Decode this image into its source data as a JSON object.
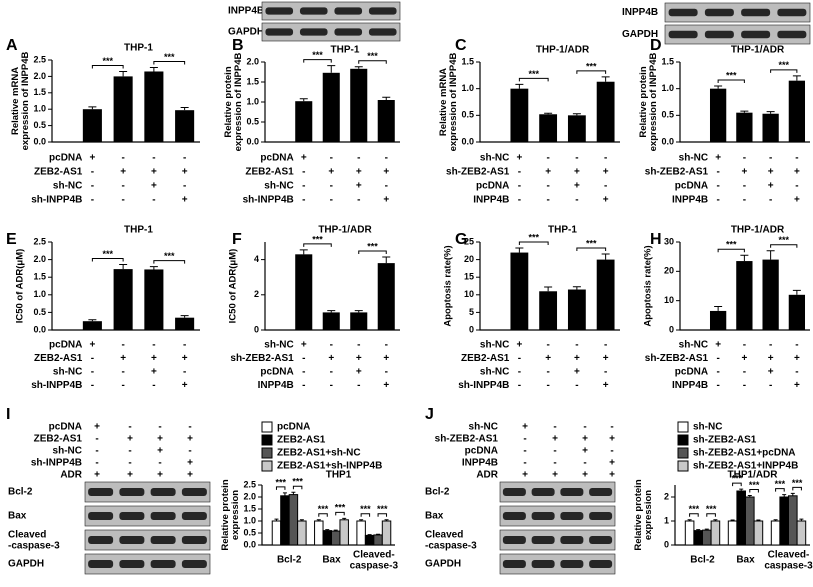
{
  "chart_data": [
    {
      "panel": "A",
      "type": "bar",
      "title": "THP-1",
      "ylabel": "Relative mRNA\nexpression of INPP4B",
      "color": "#000000",
      "values": [
        1.0,
        2.0,
        2.15,
        0.97
      ],
      "errors": [
        0.07,
        0.15,
        0.12,
        0.08
      ],
      "ylim": [
        0,
        2.5
      ],
      "yticks": [
        {
          "value": 0,
          "label": "0.0"
        },
        0.5,
        {
          "value": 1,
          "label": "1.0"
        },
        1.5,
        {
          "value": 2,
          "label": "2.0"
        },
        2.5
      ],
      "annotations": [
        "***",
        "***"
      ],
      "conditions": [
        {
          "label": "pcDNA",
          "marks": [
            "+",
            "-",
            "-",
            "-"
          ]
        },
        {
          "label": "ZEB2-AS1",
          "marks": [
            "-",
            "+",
            "+",
            "+"
          ]
        },
        {
          "label": "sh-NC",
          "marks": [
            "-",
            "-",
            "+",
            "-"
          ]
        },
        {
          "label": "sh-INPP4B",
          "marks": [
            "-",
            "-",
            "-",
            "+"
          ]
        }
      ]
    },
    {
      "panel": "B",
      "type": "bar",
      "title": "THP-1",
      "ylabel": "Relative protein\nexpression of INPP4B",
      "color": "#000000",
      "values": [
        1.02,
        1.73,
        1.83,
        1.05
      ],
      "errors": [
        0.06,
        0.18,
        0.05,
        0.07
      ],
      "ylim": [
        0,
        2.0
      ],
      "yticks": [
        {
          "value": 0,
          "label": "0.0"
        },
        0.5,
        {
          "value": 1,
          "label": "1.0"
        },
        1.5,
        {
          "value": 2,
          "label": "2.0"
        }
      ],
      "annotations": [
        "***",
        "***"
      ],
      "blot_labels": [
        "INPP4B",
        "GAPDH"
      ],
      "conditions": [
        {
          "label": "pcDNA",
          "marks": [
            "+",
            "-",
            "-",
            "-"
          ]
        },
        {
          "label": "ZEB2-AS1",
          "marks": [
            "-",
            "+",
            "+",
            "+"
          ]
        },
        {
          "label": "sh-NC",
          "marks": [
            "-",
            "-",
            "+",
            "-"
          ]
        },
        {
          "label": "sh-INPP4B",
          "marks": [
            "-",
            "-",
            "-",
            "+"
          ]
        }
      ]
    },
    {
      "panel": "C",
      "type": "bar",
      "title": "THP-1/ADR",
      "ylabel": "Relative mRNA\nexpression of INPP4B",
      "color": "#000000",
      "values": [
        1.0,
        0.52,
        0.5,
        1.13
      ],
      "errors": [
        0.08,
        0.02,
        0.03,
        0.09
      ],
      "ylim": [
        0,
        1.5
      ],
      "yticks": [
        {
          "value": 0,
          "label": "0.0"
        },
        0.5,
        {
          "value": 1,
          "label": "1.0"
        },
        1.5
      ],
      "annotations": [
        "***",
        "***"
      ],
      "conditions": [
        {
          "label": "sh-NC",
          "marks": [
            "+",
            "-",
            "-",
            "-"
          ]
        },
        {
          "label": "sh-ZEB2-AS1",
          "marks": [
            "-",
            "+",
            "+",
            "+"
          ]
        },
        {
          "label": "pcDNA",
          "marks": [
            "-",
            "-",
            "+",
            "-"
          ]
        },
        {
          "label": "INPP4B",
          "marks": [
            "-",
            "-",
            "-",
            "+"
          ]
        }
      ]
    },
    {
      "panel": "D",
      "type": "bar",
      "title": "THP-1/ADR",
      "ylabel": "Relative protein\nexpression of INPP4B",
      "color": "#000000",
      "values": [
        1.0,
        0.55,
        0.53,
        1.15
      ],
      "errors": [
        0.05,
        0.03,
        0.04,
        0.09
      ],
      "ylim": [
        0,
        1.5
      ],
      "yticks": [
        {
          "value": 0,
          "label": "0.0"
        },
        0.5,
        {
          "value": 1,
          "label": "1.0"
        },
        1.5
      ],
      "annotations": [
        "***",
        "***"
      ],
      "blot_labels": [
        "INPP4B",
        "GAPDH"
      ],
      "conditions": [
        {
          "label": "sh-NC",
          "marks": [
            "+",
            "-",
            "-",
            "-"
          ]
        },
        {
          "label": "sh-ZEB2-AS1",
          "marks": [
            "-",
            "+",
            "+",
            "+"
          ]
        },
        {
          "label": "pcDNA",
          "marks": [
            "-",
            "-",
            "+",
            "-"
          ]
        },
        {
          "label": "INPP4B",
          "marks": [
            "-",
            "-",
            "-",
            "+"
          ]
        }
      ]
    },
    {
      "panel": "E",
      "type": "bar",
      "title": "THP-1",
      "ylabel": "IC50 of ADR(μM)",
      "color": "#000000",
      "values": [
        0.25,
        1.73,
        1.72,
        0.35
      ],
      "errors": [
        0.04,
        0.13,
        0.08,
        0.06
      ],
      "ylim": [
        0,
        2.5
      ],
      "yticks": [
        {
          "value": 0,
          "label": "0.0"
        },
        0.5,
        {
          "value": 1,
          "label": "1.0"
        },
        1.5,
        {
          "value": 2,
          "label": "2.0"
        },
        2.5
      ],
      "annotations": [
        "***",
        "***"
      ],
      "conditions": [
        {
          "label": "pcDNA",
          "marks": [
            "+",
            "-",
            "-",
            "-"
          ]
        },
        {
          "label": "ZEB2-AS1",
          "marks": [
            "-",
            "+",
            "+",
            "+"
          ]
        },
        {
          "label": "sh-NC",
          "marks": [
            "-",
            "-",
            "+",
            "-"
          ]
        },
        {
          "label": "sh-INPP4B",
          "marks": [
            "-",
            "-",
            "-",
            "+"
          ]
        }
      ]
    },
    {
      "panel": "F",
      "type": "bar",
      "title": "THP-1/ADR",
      "ylabel": "IC50 of ADR(μM)",
      "color": "#000000",
      "values": [
        4.3,
        1.0,
        1.0,
        3.8
      ],
      "errors": [
        0.25,
        0.1,
        0.1,
        0.35
      ],
      "ylim": [
        0,
        5
      ],
      "yticks": [
        0,
        2,
        4
      ],
      "annotations": [
        "***",
        "***"
      ],
      "conditions": [
        {
          "label": "sh-NC",
          "marks": [
            "+",
            "-",
            "-",
            "-"
          ]
        },
        {
          "label": "sh-ZEB2-AS1",
          "marks": [
            "-",
            "+",
            "+",
            "+"
          ]
        },
        {
          "label": "pcDNA",
          "marks": [
            "-",
            "-",
            "+",
            "-"
          ]
        },
        {
          "label": "INPP4B",
          "marks": [
            "-",
            "-",
            "-",
            "+"
          ]
        }
      ]
    },
    {
      "panel": "G",
      "type": "bar",
      "title": "THP-1",
      "ylabel": "Apoptosis rate(%)",
      "color": "#000000",
      "values": [
        22,
        11,
        11.5,
        20
      ],
      "errors": [
        1.3,
        1.2,
        0.8,
        1.6
      ],
      "ylim": [
        0,
        25
      ],
      "yticks": [
        0,
        5,
        10,
        15,
        20,
        25
      ],
      "annotations": [
        "***",
        "***"
      ],
      "conditions": [
        {
          "label": "sh-NC",
          "marks": [
            "+",
            "-",
            "-",
            "-"
          ]
        },
        {
          "label": "ZEB2-AS1",
          "marks": [
            "-",
            "+",
            "+",
            "+"
          ]
        },
        {
          "label": "sh-NC",
          "marks": [
            "-",
            "-",
            "+",
            "-"
          ]
        },
        {
          "label": "sh-INPP4B",
          "marks": [
            "-",
            "-",
            "-",
            "+"
          ]
        }
      ]
    },
    {
      "panel": "H",
      "type": "bar",
      "title": "THP-1/ADR",
      "ylabel": "Apoptosis rate(%)",
      "color": "#000000",
      "values": [
        6.5,
        23.5,
        24,
        12
      ],
      "errors": [
        1.5,
        2.0,
        3.0,
        1.5
      ],
      "ylim": [
        0,
        30
      ],
      "yticks": [
        0,
        10,
        20,
        30
      ],
      "annotations": [
        "***",
        "***"
      ],
      "conditions": [
        {
          "label": "sh-NC",
          "marks": [
            "+",
            "-",
            "-",
            "-"
          ]
        },
        {
          "label": "sh-ZEB2-AS1",
          "marks": [
            "-",
            "+",
            "+",
            "+"
          ]
        },
        {
          "label": "pcDNA",
          "marks": [
            "-",
            "-",
            "+",
            "-"
          ]
        },
        {
          "label": "INPP4B",
          "marks": [
            "-",
            "-",
            "-",
            "+"
          ]
        }
      ]
    },
    {
      "panel": "I",
      "type": "grouped_bar",
      "title": "THP1",
      "ylabel": "Relative protein\nexpression",
      "categories": [
        "Bcl-2",
        "Bax",
        "Cleaved-\ncaspase-3"
      ],
      "series": [
        {
          "name": "pcDNA",
          "color": "#ffffff",
          "values": [
            1.0,
            1.0,
            1.0
          ],
          "errors": [
            0.08,
            0.05,
            0.05
          ]
        },
        {
          "name": "ZEB2-AS1",
          "color": "#000000",
          "values": [
            2.05,
            0.6,
            0.4
          ],
          "errors": [
            0.12,
            0.04,
            0.03
          ]
        },
        {
          "name": "ZEB2-AS1+sh-NC",
          "color": "#555555",
          "values": [
            2.1,
            0.58,
            0.42
          ],
          "errors": [
            0.1,
            0.04,
            0.03
          ]
        },
        {
          "name": "ZEB2-AS1+sh-INPP4B",
          "color": "#c8c8c8",
          "values": [
            1.0,
            1.05,
            1.0
          ],
          "errors": [
            0.05,
            0.06,
            0.05
          ]
        }
      ],
      "ylim": [
        0,
        2.5
      ],
      "yticks": [
        {
          "value": 0,
          "label": "0.0"
        },
        0.5,
        {
          "value": 1,
          "label": "1.0"
        },
        1.5,
        {
          "value": 2,
          "label": "2.0"
        },
        2.5
      ],
      "annotations": [
        "***",
        "***",
        "***",
        "***",
        "***",
        "***"
      ],
      "blot_labels": [
        "Bcl-2",
        "Bax",
        "Cleaved\n-caspase-3",
        "GAPDH"
      ],
      "conditions": [
        {
          "label": "pcDNA",
          "marks": [
            "+",
            "-",
            "-",
            "-"
          ]
        },
        {
          "label": "ZEB2-AS1",
          "marks": [
            "-",
            "+",
            "+",
            "+"
          ]
        },
        {
          "label": "sh-NC",
          "marks": [
            "-",
            "-",
            "+",
            "-"
          ]
        },
        {
          "label": "sh-INPP4B",
          "marks": [
            "-",
            "-",
            "-",
            "+"
          ]
        },
        {
          "label": "ADR",
          "marks": [
            "+",
            "+",
            "+",
            "+"
          ]
        }
      ]
    },
    {
      "panel": "J",
      "type": "grouped_bar",
      "title": "THP1/ADR",
      "ylabel": "Relative protein\nexpression",
      "categories": [
        "Bcl-2",
        "Bax",
        "Cleaved-\ncaspase-3"
      ],
      "series": [
        {
          "name": "sh-NC",
          "color": "#ffffff",
          "values": [
            1.0,
            1.0,
            1.0
          ],
          "errors": [
            0.05,
            0.04,
            0.05
          ]
        },
        {
          "name": "sh-ZEB2-AS1",
          "color": "#000000",
          "values": [
            0.6,
            2.25,
            2.0
          ],
          "errors": [
            0.04,
            0.08,
            0.1
          ]
        },
        {
          "name": "sh-ZEB2-AS1+pcDNA",
          "color": "#555555",
          "values": [
            0.62,
            2.0,
            2.05
          ],
          "errors": [
            0.04,
            0.06,
            0.1
          ]
        },
        {
          "name": "sh-ZEB2-AS1+INPP4B",
          "color": "#c8c8c8",
          "values": [
            1.0,
            1.0,
            1.0
          ],
          "errors": [
            0.05,
            0.04,
            0.08
          ]
        }
      ],
      "ylim": [
        0,
        2.5
      ],
      "yticks": [
        0,
        1,
        2
      ],
      "annotations": [
        "***",
        "***",
        "***",
        "***",
        "***",
        "***"
      ],
      "blot_labels": [
        "Bcl-2",
        "Bax",
        "Cleaved\n-caspase-3",
        "GAPDH"
      ],
      "conditions": [
        {
          "label": "sh-NC",
          "marks": [
            "+",
            "-",
            "-",
            "-"
          ]
        },
        {
          "label": "sh-ZEB2-AS1",
          "marks": [
            "-",
            "+",
            "+",
            "+"
          ]
        },
        {
          "label": "pcDNA",
          "marks": [
            "-",
            "-",
            "+",
            "-"
          ]
        },
        {
          "label": "INPP4B",
          "marks": [
            "-",
            "-",
            "-",
            "+"
          ]
        },
        {
          "label": "ADR",
          "marks": [
            "+",
            "+",
            "+",
            "+"
          ]
        }
      ]
    }
  ]
}
